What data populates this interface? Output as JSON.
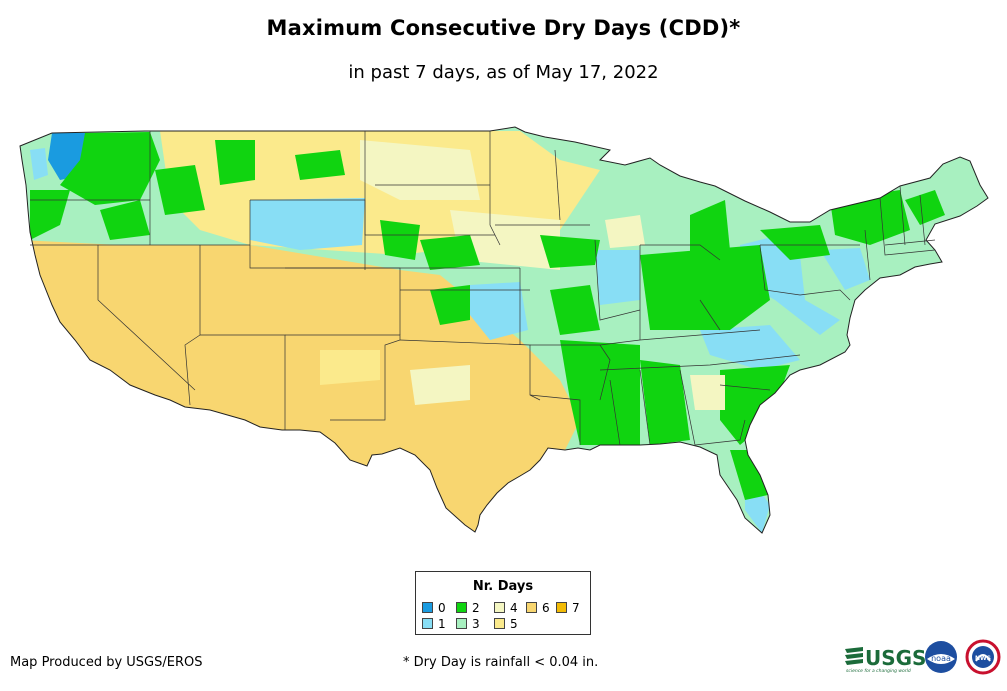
{
  "header": {
    "title": "Maximum Consecutive Dry Days (CDD)*",
    "subtitle": "in past 7 days, as of May 17, 2022"
  },
  "legend": {
    "title": "Nr. Days",
    "items": [
      {
        "label": "0",
        "color": "#1a9be0"
      },
      {
        "label": "1",
        "color": "#88def5"
      },
      {
        "label": "2",
        "color": "#10d410"
      },
      {
        "label": "3",
        "color": "#a8f0c0"
      },
      {
        "label": "4",
        "color": "#f4f6c2"
      },
      {
        "label": "5",
        "color": "#fbea8c"
      },
      {
        "label": "6",
        "color": "#f8d670"
      },
      {
        "label": "7",
        "color": "#f2bb06"
      }
    ]
  },
  "footer": {
    "credit": "Map Produced by USGS/EROS",
    "footnote": "* Dry Day is rainfall < 0.04 in.",
    "logos": {
      "usgs": "USGS",
      "usgs_tagline": "science for a changing world",
      "noaa": "noaa",
      "nws": "NWS"
    }
  },
  "colors": {
    "outline": "#222222",
    "background": "#ffffff"
  }
}
